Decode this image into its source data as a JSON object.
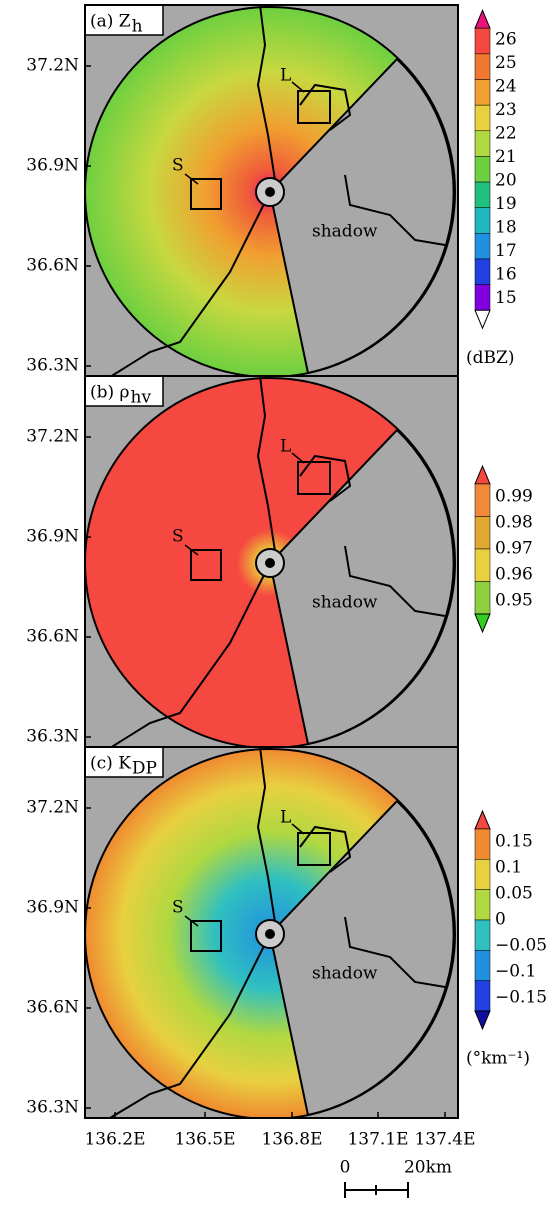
{
  "panels": [
    {
      "label": "(a) Z",
      "label_sub": "h",
      "colorbar": {
        "ticks": [
          "26",
          "25",
          "24",
          "23",
          "22",
          "21",
          "20",
          "19",
          "18",
          "17",
          "16",
          "15"
        ],
        "unit": "(dBZ)"
      },
      "annotations": {
        "small_box": "S",
        "large_box": "L",
        "shadow": "shadow"
      }
    },
    {
      "label": "(b) ρ",
      "label_sub": "hv",
      "colorbar": {
        "ticks": [
          "0.99",
          "0.98",
          "0.97",
          "0.96",
          "0.95"
        ]
      },
      "annotations": {
        "small_box": "S",
        "large_box": "L",
        "shadow": "shadow"
      }
    },
    {
      "label": "(c) K",
      "label_sub": "DP",
      "colorbar": {
        "ticks": [
          "0.15",
          "0.1",
          "0.05",
          "0",
          "−0.05",
          "−0.1",
          "−0.15"
        ],
        "unit": "(°km⁻¹)"
      },
      "annotations": {
        "small_box": "S",
        "large_box": "L",
        "shadow": "shadow"
      }
    }
  ],
  "lat_labels": [
    "37.2N",
    "36.9N",
    "36.6N",
    "36.3N"
  ],
  "lon_labels": [
    "136.2E",
    "136.5E",
    "136.8E",
    "137.1E",
    "137.4E"
  ],
  "scale_bar": {
    "start": "0",
    "end": "20km"
  }
}
